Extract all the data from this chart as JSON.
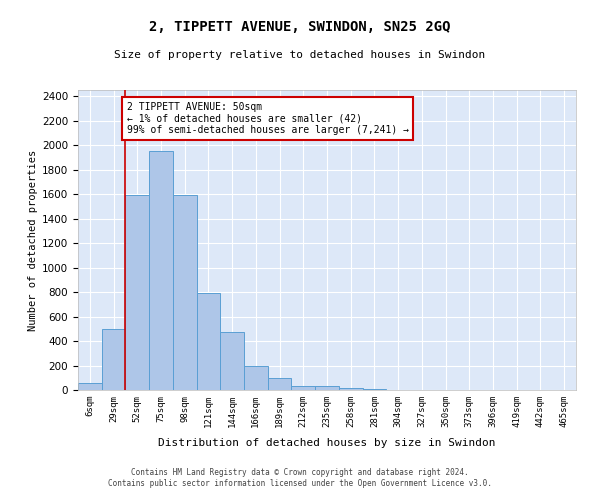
{
  "title": "2, TIPPETT AVENUE, SWINDON, SN25 2GQ",
  "subtitle": "Size of property relative to detached houses in Swindon",
  "xlabel": "Distribution of detached houses by size in Swindon",
  "ylabel": "Number of detached properties",
  "footer_line1": "Contains HM Land Registry data © Crown copyright and database right 2024.",
  "footer_line2": "Contains public sector information licensed under the Open Government Licence v3.0.",
  "categories": [
    "6sqm",
    "29sqm",
    "52sqm",
    "75sqm",
    "98sqm",
    "121sqm",
    "144sqm",
    "166sqm",
    "189sqm",
    "212sqm",
    "235sqm",
    "258sqm",
    "281sqm",
    "304sqm",
    "327sqm",
    "350sqm",
    "373sqm",
    "396sqm",
    "419sqm",
    "442sqm",
    "465sqm"
  ],
  "values": [
    55,
    500,
    1590,
    1950,
    1590,
    790,
    470,
    200,
    95,
    35,
    30,
    20,
    5,
    3,
    2,
    1,
    0,
    0,
    0,
    0,
    0
  ],
  "bar_color": "#aec6e8",
  "bar_edge_color": "#5a9fd4",
  "background_color": "#dde8f8",
  "grid_color": "#ffffff",
  "red_line_x": 1.5,
  "annotation_text": "2 TIPPETT AVENUE: 50sqm\n← 1% of detached houses are smaller (42)\n99% of semi-detached houses are larger (7,241) →",
  "annotation_box_color": "#ffffff",
  "annotation_border_color": "#cc0000",
  "ylim": [
    0,
    2450
  ],
  "yticks": [
    0,
    200,
    400,
    600,
    800,
    1000,
    1200,
    1400,
    1600,
    1800,
    2000,
    2200,
    2400
  ]
}
